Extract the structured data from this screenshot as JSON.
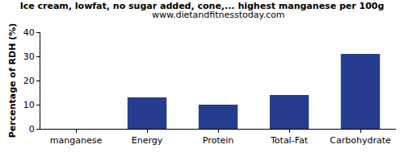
{
  "chart_data": {
    "type": "bar",
    "title": "Ice cream, lowfat, no sugar added, cone,... highest manganese per 100g",
    "subtitle": "www.dietandfitnesstoday.com",
    "y_label": "Percentage of RDH (%)",
    "categories": [
      "manganese",
      "Energy",
      "Protein",
      "Total-Fat",
      "Carbohydrate"
    ],
    "values": [
      0,
      13,
      10,
      14,
      31
    ],
    "color": "#253d8f",
    "ylim": [
      0,
      40
    ],
    "yticks": [
      0,
      10,
      20,
      30,
      40
    ],
    "grid": false
  }
}
